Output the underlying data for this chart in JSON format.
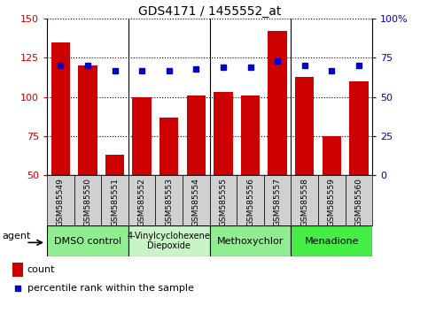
{
  "title": "GDS4171 / 1455552_at",
  "samples": [
    "GSM585549",
    "GSM585550",
    "GSM585551",
    "GSM585552",
    "GSM585553",
    "GSM585554",
    "GSM585555",
    "GSM585556",
    "GSM585557",
    "GSM585558",
    "GSM585559",
    "GSM585560"
  ],
  "counts": [
    135,
    120,
    63,
    100,
    87,
    101,
    103,
    101,
    142,
    113,
    75,
    110
  ],
  "percentiles": [
    70,
    70,
    67,
    67,
    67,
    68,
    69,
    69,
    73,
    70,
    67,
    70
  ],
  "bar_color": "#cc0000",
  "percentile_color": "#0000cc",
  "ylim_left": [
    50,
    150
  ],
  "ylim_right": [
    0,
    100
  ],
  "yticks_left": [
    50,
    75,
    100,
    125,
    150
  ],
  "yticks_right": [
    0,
    25,
    50,
    75,
    100
  ],
  "yticklabels_right": [
    "0",
    "25",
    "50",
    "75",
    "100%"
  ],
  "groups": [
    {
      "label": "DMSO control",
      "cols": [
        0,
        1,
        2
      ],
      "color": "#90ee90"
    },
    {
      "label": "4-Vinylcyclohexene\nDiepoxide",
      "cols": [
        3,
        4,
        5
      ],
      "color": "#c8f0c8"
    },
    {
      "label": "Methoxychlor",
      "cols": [
        6,
        7,
        8
      ],
      "color": "#90ee90"
    },
    {
      "label": "Menadione",
      "cols": [
        9,
        10,
        11
      ],
      "color": "#44dd44"
    }
  ],
  "agent_label": "agent",
  "legend_count_label": "count",
  "legend_percentile_label": "percentile rank within the sample",
  "grid_linestyle": "dotted",
  "bg_color": "#ffffff",
  "sample_box_color": "#d0d0d0",
  "tick_color_left": "#cc0000",
  "tick_color_right": "#0000cc",
  "spine_color": "#000000"
}
